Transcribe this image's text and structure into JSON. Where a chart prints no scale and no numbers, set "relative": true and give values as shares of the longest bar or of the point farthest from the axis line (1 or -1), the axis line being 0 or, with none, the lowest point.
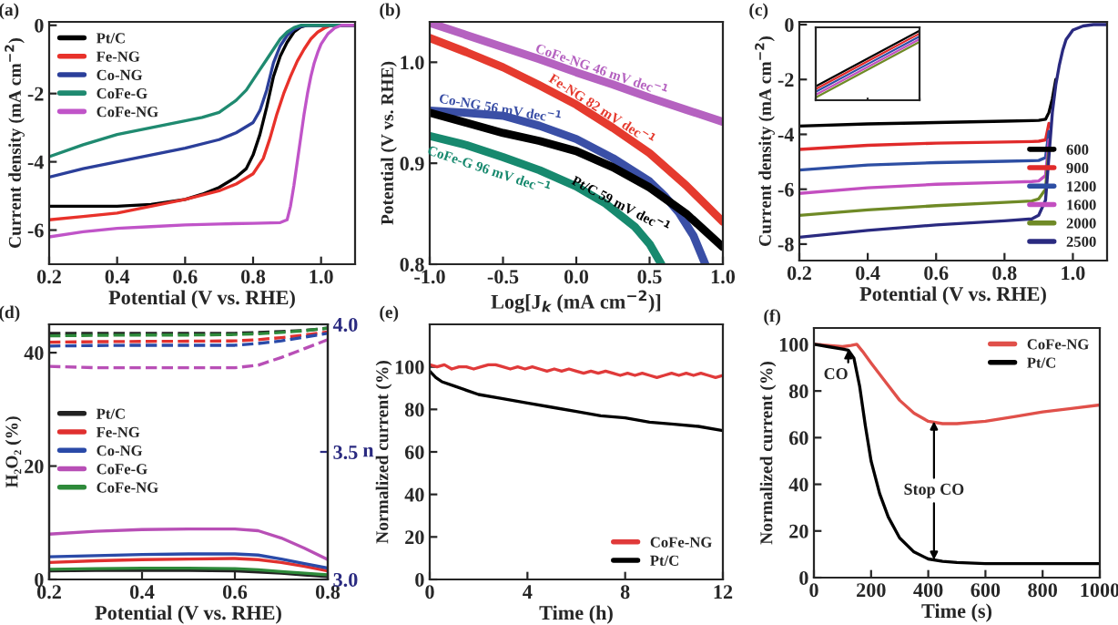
{
  "chart_data": [
    {
      "type": "line",
      "title": "(a)",
      "xlabel": "Potential (V vs. RHE)",
      "ylabel": "Current density (mA cm$^{−2}$)",
      "xlim": [
        0.2,
        1.1
      ],
      "ylim": [
        -7,
        0.1
      ],
      "xticks": [
        0.2,
        0.4,
        0.6,
        0.8,
        {
          "value": 1,
          "label": "1.0"
        }
      ],
      "yticks": [
        -6,
        -4,
        -2,
        0
      ],
      "legend": "top left",
      "series": [
        {
          "name": "Pt/C",
          "color": "#000000",
          "x": [
            0.2,
            0.3,
            0.4,
            0.5,
            0.6,
            0.65,
            0.7,
            0.75,
            0.78,
            0.8,
            0.82,
            0.84,
            0.86,
            0.88,
            0.9,
            0.92,
            0.94,
            0.96,
            1.0,
            1.1
          ],
          "values": [
            -5.3,
            -5.3,
            -5.3,
            -5.25,
            -5.1,
            -4.95,
            -4.75,
            -4.45,
            -4.2,
            -3.8,
            -3.2,
            -2.4,
            -1.5,
            -0.9,
            -0.5,
            -0.2,
            -0.05,
            0,
            0,
            0
          ]
        },
        {
          "name": "Fe-NG",
          "color": "#e8312a",
          "x": [
            0.2,
            0.3,
            0.4,
            0.5,
            0.6,
            0.7,
            0.75,
            0.8,
            0.83,
            0.85,
            0.87,
            0.89,
            0.91,
            0.93,
            0.95,
            0.97,
            0.99,
            1.01,
            1.03,
            1.1
          ],
          "values": [
            -5.7,
            -5.6,
            -5.5,
            -5.3,
            -5.1,
            -4.85,
            -4.65,
            -4.35,
            -3.9,
            -3.3,
            -2.6,
            -2.0,
            -1.5,
            -1.05,
            -0.7,
            -0.4,
            -0.2,
            -0.08,
            0,
            0
          ]
        },
        {
          "name": "Co-NG",
          "color": "#2b3f9a",
          "x": [
            0.2,
            0.3,
            0.4,
            0.5,
            0.6,
            0.7,
            0.75,
            0.8,
            0.82,
            0.84,
            0.86,
            0.88,
            0.9,
            0.92,
            0.94,
            0.96,
            1.1
          ],
          "values": [
            -4.45,
            -4.2,
            -4.0,
            -3.8,
            -3.6,
            -3.35,
            -3.15,
            -2.85,
            -2.5,
            -1.9,
            -1.1,
            -0.6,
            -0.3,
            -0.12,
            -0.03,
            0,
            0
          ]
        },
        {
          "name": "CoFe-G",
          "color": "#1f8a70",
          "x": [
            0.2,
            0.3,
            0.4,
            0.5,
            0.6,
            0.65,
            0.7,
            0.75,
            0.78,
            0.8,
            0.82,
            0.84,
            0.86,
            0.88,
            0.9,
            0.92,
            0.94,
            1.1
          ],
          "values": [
            -3.85,
            -3.5,
            -3.2,
            -3.0,
            -2.8,
            -2.7,
            -2.55,
            -2.2,
            -1.9,
            -1.6,
            -1.3,
            -1.0,
            -0.7,
            -0.4,
            -0.2,
            -0.07,
            0,
            0
          ]
        },
        {
          "name": "CoFe-NG",
          "color": "#c054c8",
          "x": [
            0.2,
            0.3,
            0.4,
            0.5,
            0.6,
            0.7,
            0.8,
            0.88,
            0.9,
            0.91,
            0.92,
            0.93,
            0.94,
            0.95,
            0.96,
            0.97,
            0.98,
            0.99,
            1.0,
            1.02,
            1.04,
            1.06,
            1.1
          ],
          "values": [
            -6.2,
            -6.05,
            -5.95,
            -5.9,
            -5.85,
            -5.82,
            -5.8,
            -5.78,
            -5.7,
            -5.3,
            -4.7,
            -4.0,
            -3.3,
            -2.6,
            -2.0,
            -1.5,
            -1.1,
            -0.8,
            -0.55,
            -0.25,
            -0.08,
            0,
            0
          ]
        }
      ]
    },
    {
      "type": "line",
      "title": "(b)",
      "xlabel": "Log[J$_{k}$ (mA cm$^{−2}$)]",
      "ylabel": "Potential (V vs. RHE)",
      "xlim": [
        -1,
        1
      ],
      "ylim": [
        0.8,
        1.04
      ],
      "xticks": [
        {
          "value": -1,
          "label": "-1.0"
        },
        {
          "value": -0.5,
          "label": "-0.5"
        },
        {
          "value": 0,
          "label": "0.0"
        },
        0.5,
        {
          "value": 1,
          "label": "1.0"
        }
      ],
      "yticks": [
        0.8,
        0.9,
        {
          "value": 1,
          "label": "1.0"
        }
      ],
      "series": [
        {
          "color": "#b562c0",
          "x": [
            -1,
            -0.75,
            -0.5,
            -0.25,
            0,
            0.25,
            0.5,
            0.75,
            1
          ],
          "values": [
            1.039,
            1.027,
            1.015,
            1.003,
            0.99,
            0.978,
            0.965,
            0.953,
            0.941
          ]
        },
        {
          "color": "#e53a2e",
          "x": [
            -1,
            -0.75,
            -0.5,
            -0.25,
            0,
            0.25,
            0.5,
            0.75,
            1
          ],
          "values": [
            1.024,
            1.01,
            0.995,
            0.977,
            0.958,
            0.935,
            0.91,
            0.878,
            0.842
          ]
        },
        {
          "color": "#3a4fa6",
          "x": [
            -1,
            -0.75,
            -0.5,
            -0.25,
            0,
            0.25,
            0.5,
            0.6,
            0.7,
            0.8,
            0.88
          ],
          "values": [
            0.952,
            0.95,
            0.947,
            0.937,
            0.924,
            0.905,
            0.882,
            0.868,
            0.851,
            0.828,
            0.8
          ]
        },
        {
          "color": "#000000",
          "x": [
            -1,
            -0.75,
            -0.5,
            -0.25,
            0,
            0.25,
            0.5,
            0.75,
            1
          ],
          "values": [
            0.95,
            0.94,
            0.93,
            0.922,
            0.912,
            0.896,
            0.876,
            0.85,
            0.817
          ]
        },
        {
          "color": "#17896e",
          "x": [
            -1,
            -0.75,
            -0.5,
            -0.25,
            0,
            0.2,
            0.4,
            0.5,
            0.58
          ],
          "values": [
            0.927,
            0.918,
            0.906,
            0.893,
            0.877,
            0.86,
            0.837,
            0.82,
            0.8
          ]
        }
      ],
      "annotations": [
        {
          "text": "CoFe-NG 46 mV dec$^{−1}$",
          "x": 0.17,
          "y": 0.991
        },
        {
          "text": "Fe-NG 82 mV dec$^{−1}$",
          "x": 0.17,
          "y": 0.952
        },
        {
          "text": "Co-NG 56 mV dec$^{−1}$",
          "x": -0.52,
          "y": 0.953
        },
        {
          "text": "Pt/C 59 mV dec$^{−1}$",
          "x": 0.3,
          "y": 0.858
        },
        {
          "text": "CoFe-G 96 mV dec$^{−1}$",
          "x": -0.56,
          "y": 0.909
        }
      ]
    },
    {
      "type": "line",
      "title": "(c)",
      "xlabel": "Potential (V vs. RHE)",
      "ylabel": "Current density (mA cm$^{−2}$)",
      "xlim": [
        0.2,
        1.1
      ],
      "ylim": [
        -8.6,
        0.1
      ],
      "xticks": [
        0.2,
        0.4,
        0.6,
        0.8,
        {
          "value": 1,
          "label": "1.0"
        }
      ],
      "yticks": [
        -8,
        -6,
        -4,
        -2,
        0
      ],
      "legend": "bottom right",
      "series": [
        {
          "name": "600",
          "color": "#000000",
          "x": [
            0.2,
            0.4,
            0.6,
            0.8,
            0.88,
            0.9,
            0.92,
            0.93,
            0.94,
            0.95
          ],
          "values": [
            -3.7,
            -3.62,
            -3.57,
            -3.52,
            -3.5,
            -3.49,
            -3.45,
            -3.2,
            -2.7,
            -2.0
          ]
        },
        {
          "name": "900",
          "color": "#e02a2a",
          "x": [
            0.2,
            0.4,
            0.6,
            0.8,
            0.88,
            0.9,
            0.92,
            0.93
          ],
          "values": [
            -4.55,
            -4.4,
            -4.32,
            -4.28,
            -4.26,
            -4.25,
            -4.2,
            -3.6
          ]
        },
        {
          "name": "1200",
          "color": "#2d4ea3",
          "x": [
            0.2,
            0.4,
            0.6,
            0.8,
            0.88,
            0.9,
            0.92,
            0.93
          ],
          "values": [
            -5.3,
            -5.12,
            -5.03,
            -4.98,
            -4.96,
            -4.95,
            -4.85,
            -3.9
          ]
        },
        {
          "name": "1600",
          "color": "#c34fc0",
          "x": [
            0.2,
            0.4,
            0.6,
            0.8,
            0.88,
            0.9,
            0.92,
            0.93
          ],
          "values": [
            -6.15,
            -5.95,
            -5.82,
            -5.75,
            -5.72,
            -5.7,
            -5.5,
            -4.2
          ]
        },
        {
          "name": "2000",
          "color": "#6f8a26",
          "x": [
            0.2,
            0.4,
            0.6,
            0.8,
            0.88,
            0.9,
            0.92,
            0.93
          ],
          "values": [
            -6.95,
            -6.75,
            -6.6,
            -6.48,
            -6.43,
            -6.35,
            -6.0,
            -4.5
          ]
        },
        {
          "name": "2500",
          "color": "#2a2a80",
          "x": [
            0.2,
            0.4,
            0.6,
            0.8,
            0.88,
            0.9,
            0.92,
            0.93,
            0.94,
            0.95,
            0.96,
            0.97,
            0.98,
            1.0,
            1.03,
            1.06,
            1.1
          ],
          "values": [
            -7.75,
            -7.5,
            -7.3,
            -7.15,
            -7.08,
            -6.95,
            -6.4,
            -4.8,
            -3.2,
            -2.2,
            -1.5,
            -0.95,
            -0.55,
            -0.2,
            -0.05,
            0,
            0
          ]
        }
      ]
    },
    {
      "type": "line",
      "relative": true,
      "categories": [
        null,
        null,
        null
      ],
      "series": [
        {
          "color": "#000000",
          "values": [
            0.2,
            0.6,
            1
          ]
        },
        {
          "color": "#e02a2a",
          "values": [
            0.16,
            0.56,
            0.96
          ]
        },
        {
          "color": "#2d4ea3",
          "values": [
            0.12,
            0.52,
            0.92
          ]
        },
        {
          "color": "#c34fc0",
          "values": [
            0.08,
            0.48,
            0.88
          ]
        },
        {
          "color": "#6f8a26",
          "values": [
            0.04,
            0.44,
            0.84
          ]
        }
      ]
    },
    {
      "type": "line",
      "title": "(d)",
      "xlabel": "Potential (V vs. RHE)",
      "ylabel": "H₂O₂ (%)",
      "y2label": "n",
      "xlim": [
        0.2,
        0.8
      ],
      "ylim": [
        0,
        45
      ],
      "xticks": [
        0.2,
        0.4,
        0.6,
        0.8
      ],
      "yticks": [
        0,
        20,
        40
      ],
      "y2lim": [
        3,
        4
      ],
      "y2ticks": [
        {
          "value": 3,
          "label": "3.0"
        },
        3.5,
        {
          "value": 4,
          "label": "4.0"
        }
      ],
      "legend": "left",
      "series": [
        {
          "name": "Pt/C",
          "color": "#222222",
          "x": [
            0.2,
            0.3,
            0.4,
            0.5,
            0.6,
            0.65,
            0.7,
            0.75,
            0.8
          ],
          "values": [
            1.5,
            1.6,
            1.6,
            1.6,
            1.5,
            1.3,
            1.1,
            0.8,
            0.5
          ]
        },
        {
          "name": "Fe-NG",
          "color": "#e0302f",
          "x": [
            0.2,
            0.3,
            0.4,
            0.5,
            0.6,
            0.65,
            0.7,
            0.75,
            0.8
          ],
          "values": [
            3.0,
            3.3,
            3.5,
            3.6,
            3.7,
            3.5,
            3.0,
            2.3,
            1.5
          ]
        },
        {
          "name": "Co-NG",
          "color": "#2a4aa8",
          "x": [
            0.2,
            0.3,
            0.4,
            0.5,
            0.6,
            0.65,
            0.7,
            0.75,
            0.8
          ],
          "values": [
            4.0,
            4.2,
            4.4,
            4.5,
            4.5,
            4.3,
            3.6,
            2.8,
            2.0
          ]
        },
        {
          "name": "CoFe-G",
          "color": "#b84fb6",
          "x": [
            0.2,
            0.3,
            0.4,
            0.5,
            0.6,
            0.65,
            0.7,
            0.75,
            0.8
          ],
          "values": [
            8.0,
            8.5,
            8.8,
            8.9,
            8.9,
            8.6,
            7.3,
            5.5,
            3.5
          ]
        },
        {
          "name": "CoFe-NG",
          "color": "#2e8a3a",
          "x": [
            0.2,
            0.3,
            0.4,
            0.5,
            0.6,
            0.65,
            0.7,
            0.75,
            0.8
          ],
          "values": [
            1.8,
            1.9,
            2.0,
            2.0,
            1.9,
            1.7,
            1.4,
            1.1,
            0.8
          ]
        },
        {
          "color": "#222222",
          "axis": "y2",
          "line_style": "dashed",
          "x": [
            0.2,
            0.3,
            0.4,
            0.5,
            0.6,
            0.65,
            0.7,
            0.75,
            0.8
          ],
          "values": [
            3.965,
            3.965,
            3.965,
            3.965,
            3.965,
            3.968,
            3.972,
            3.976,
            3.985
          ]
        },
        {
          "color": "#e0302f",
          "axis": "y2",
          "line_style": "dashed",
          "x": [
            0.2,
            0.3,
            0.4,
            0.5,
            0.6,
            0.65,
            0.7,
            0.75,
            0.8
          ],
          "values": [
            3.93,
            3.932,
            3.933,
            3.934,
            3.935,
            3.94,
            3.948,
            3.958,
            3.97
          ]
        },
        {
          "color": "#2a4aa8",
          "axis": "y2",
          "line_style": "dashed",
          "x": [
            0.2,
            0.3,
            0.4,
            0.5,
            0.6,
            0.65,
            0.7,
            0.75,
            0.8
          ],
          "values": [
            3.915,
            3.917,
            3.918,
            3.918,
            3.918,
            3.925,
            3.935,
            3.95,
            3.965
          ]
        },
        {
          "color": "#b84fb6",
          "axis": "y2",
          "line_style": "dashed",
          "x": [
            0.2,
            0.3,
            0.4,
            0.5,
            0.6,
            0.65,
            0.7,
            0.75,
            0.8
          ],
          "values": [
            3.835,
            3.83,
            3.83,
            3.83,
            3.83,
            3.84,
            3.87,
            3.905,
            3.94
          ]
        },
        {
          "color": "#2e8a3a",
          "axis": "y2",
          "line_style": "dashed",
          "x": [
            0.2,
            0.3,
            0.4,
            0.5,
            0.6,
            0.65,
            0.7,
            0.75,
            0.8
          ],
          "values": [
            3.955,
            3.957,
            3.958,
            3.958,
            3.96,
            3.963,
            3.968,
            3.975,
            3.985
          ]
        }
      ]
    },
    {
      "type": "line",
      "title": "(e)",
      "xlabel": "Time (h)",
      "ylabel": "Normalized current (%)",
      "xlim": [
        0,
        12
      ],
      "ylim": [
        0,
        120
      ],
      "xticks": [
        0,
        4,
        8,
        12
      ],
      "yticks": [
        0,
        20,
        40,
        60,
        80,
        100
      ],
      "legend": "bottom right",
      "series": [
        {
          "name": "CoFe-NG",
          "color": "#e03a3a",
          "x": [
            0,
            0.3,
            0.6,
            0.9,
            1.2,
            1.5,
            1.8,
            2.1,
            2.4,
            2.7,
            3,
            3.3,
            3.6,
            3.9,
            4.2,
            4.5,
            4.8,
            5.1,
            5.4,
            5.7,
            6,
            6.3,
            6.6,
            6.9,
            7.2,
            7.5,
            7.8,
            8.1,
            8.4,
            8.7,
            9,
            9.3,
            9.6,
            9.9,
            10.2,
            10.5,
            10.8,
            11.1,
            11.4,
            11.7,
            12
          ],
          "values": [
            101,
            100,
            101,
            99,
            100,
            100,
            99,
            100,
            101,
            101,
            100,
            99,
            100,
            99,
            100,
            99,
            98,
            99,
            98,
            99,
            98,
            97,
            98,
            97,
            98,
            97,
            96,
            97,
            96,
            97,
            96,
            95,
            96,
            97,
            96,
            97,
            96,
            97,
            96,
            95,
            96
          ]
        },
        {
          "name": "Pt/C",
          "color": "#000000",
          "x": [
            0,
            0.25,
            0.5,
            1,
            1.5,
            2,
            3,
            4,
            5,
            6,
            7,
            8,
            9,
            10,
            11,
            12
          ],
          "values": [
            98,
            95,
            93,
            91,
            89,
            87,
            85,
            83,
            81,
            79,
            77,
            76,
            74,
            73,
            72,
            70
          ]
        }
      ]
    },
    {
      "type": "line",
      "title": "(f)",
      "xlabel": "Time (s)",
      "ylabel": "Normalized current (%)",
      "xlim": [
        0,
        1000
      ],
      "ylim": [
        0,
        107
      ],
      "xticks": [
        0,
        200,
        400,
        600,
        800,
        1000
      ],
      "yticks": [
        0,
        20,
        40,
        60,
        80,
        100
      ],
      "legend": "top right",
      "series": [
        {
          "name": "CoFe-NG",
          "color": "#e0504a",
          "x": [
            0,
            50,
            100,
            130,
            150,
            170,
            200,
            250,
            300,
            350,
            400,
            450,
            500,
            600,
            700,
            800,
            900,
            1000
          ],
          "values": [
            100,
            99.5,
            99,
            99.5,
            100,
            97,
            92,
            84,
            76,
            70.5,
            67,
            66,
            66,
            67,
            69,
            71,
            72.5,
            74
          ]
        },
        {
          "name": "Pt/C",
          "color": "#000000",
          "x": [
            0,
            50,
            100,
            120,
            140,
            160,
            180,
            200,
            230,
            260,
            300,
            350,
            400,
            450,
            500,
            600,
            700,
            800,
            1000
          ],
          "values": [
            100,
            99,
            98,
            97.5,
            94,
            82,
            65,
            50,
            36,
            26,
            17,
            11,
            8,
            7,
            6.5,
            6,
            6,
            6,
            6
          ]
        }
      ],
      "annotations": [
        {
          "text": "CO",
          "x": 120,
          "y": 97.5
        },
        {
          "text": "Stop CO",
          "x": 420,
          "y": 67
        }
      ]
    }
  ]
}
